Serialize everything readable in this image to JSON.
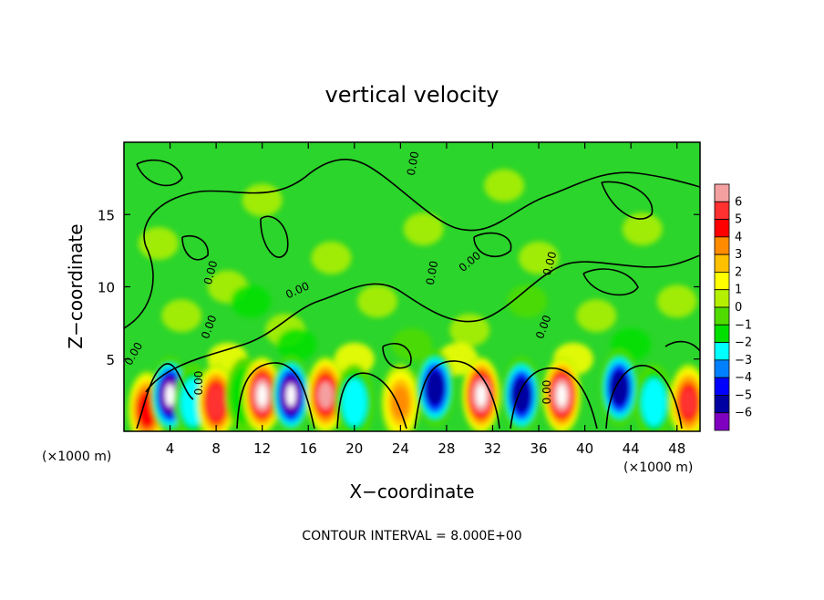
{
  "chart_data": {
    "type": "heatmap",
    "title": "vertical velocity",
    "xlabel": "X−coordinate",
    "ylabel": "Z−coordinate",
    "x_unit": "(×1000 m)",
    "x_ticks": [
      "4",
      "8",
      "12",
      "16",
      "20",
      "24",
      "28",
      "32",
      "36",
      "40",
      "44",
      "48"
    ],
    "x_tick_values": [
      4,
      8,
      12,
      16,
      20,
      24,
      28,
      32,
      36,
      40,
      44,
      48
    ],
    "y_ticks": [
      "5",
      "10",
      "15"
    ],
    "y_tick_values": [
      5,
      10,
      15
    ],
    "xlim": [
      0,
      50
    ],
    "ylim": [
      0,
      20
    ],
    "colorbar": {
      "labels": [
        "6",
        "5",
        "4",
        "3",
        "2",
        "1",
        "0",
        "−1",
        "−2",
        "−3",
        "−4",
        "−5",
        "−6"
      ],
      "values": [
        6,
        5,
        4,
        3,
        2,
        1,
        0,
        -1,
        -2,
        -3,
        -4,
        -5,
        -6
      ],
      "colors": [
        "#f4a0a0",
        "#ff3030",
        "#ff0000",
        "#ff8c00",
        "#ffc000",
        "#ffff00",
        "#b4f000",
        "#50dc00",
        "#00e000",
        "#00ffff",
        "#0080ff",
        "#0000ff",
        "#0000a0",
        "#8000c0"
      ]
    },
    "contour_labels": [
      "0.00",
      "0.00",
      "0.00",
      "0.00",
      "0.00",
      "0.00",
      "0.00",
      "0.00",
      "0.00",
      "0.00",
      "0.00"
    ],
    "features": [
      {
        "x": 2.0,
        "z": 1.5,
        "sign": "positive",
        "amp": 4.5
      },
      {
        "x": 4.0,
        "z": 2.5,
        "sign": "negative",
        "amp": 6.5
      },
      {
        "x": 6.0,
        "z": 2.0,
        "sign": "negative",
        "amp": 3.0
      },
      {
        "x": 8.0,
        "z": 2.0,
        "sign": "positive",
        "amp": 5.5
      },
      {
        "x": 10.5,
        "z": 2.5,
        "sign": "negative",
        "amp": 2.0
      },
      {
        "x": 12.0,
        "z": 2.5,
        "sign": "positive",
        "amp": 6.5
      },
      {
        "x": 14.5,
        "z": 2.5,
        "sign": "negative",
        "amp": 6.5
      },
      {
        "x": 17.5,
        "z": 2.5,
        "sign": "positive",
        "amp": 6.0
      },
      {
        "x": 20.0,
        "z": 2.0,
        "sign": "negative",
        "amp": 3.0
      },
      {
        "x": 24.0,
        "z": 2.0,
        "sign": "positive",
        "amp": 3.0
      },
      {
        "x": 27.0,
        "z": 3.0,
        "sign": "negative",
        "amp": 6.0
      },
      {
        "x": 31.0,
        "z": 2.5,
        "sign": "positive",
        "amp": 6.5
      },
      {
        "x": 34.5,
        "z": 2.5,
        "sign": "negative",
        "amp": 6.0
      },
      {
        "x": 38.0,
        "z": 2.5,
        "sign": "positive",
        "amp": 6.5
      },
      {
        "x": 43.0,
        "z": 3.0,
        "sign": "negative",
        "amp": 5.5
      },
      {
        "x": 46.0,
        "z": 2.0,
        "sign": "negative",
        "amp": 3.0
      },
      {
        "x": 49.0,
        "z": 2.0,
        "sign": "positive",
        "amp": 5.0
      }
    ]
  },
  "footer": {
    "contour_interval": "CONTOUR INTERVAL = 8.000E+00"
  }
}
